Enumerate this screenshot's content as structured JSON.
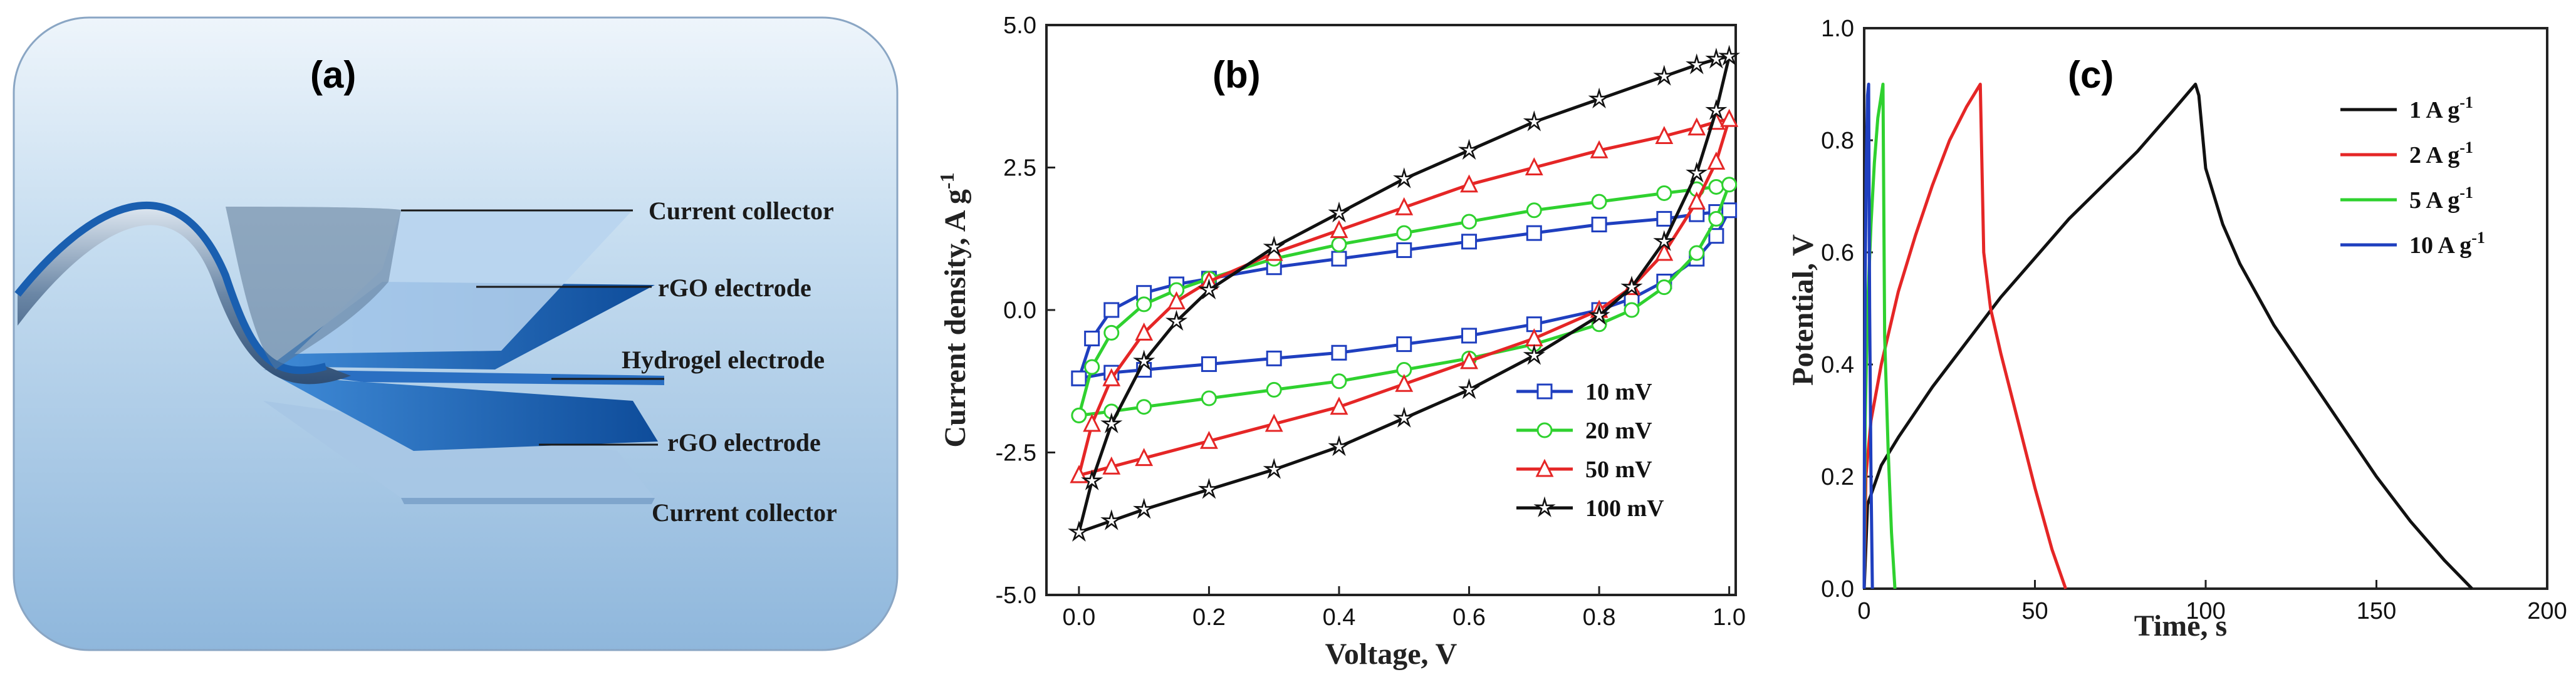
{
  "figure": {
    "panel_a": {
      "label": "(a)",
      "layers": [
        {
          "label": "Current collector",
          "color": "#9cc4e4"
        },
        {
          "label": "rGO electrode",
          "color": "#1f5fa8"
        },
        {
          "label": "Hydrogel electrode",
          "color": "#2f7fd0"
        },
        {
          "label": "rGO electrode",
          "color": "#1f5fa8"
        },
        {
          "label": "Current collector",
          "color": "#9cc4e4"
        }
      ]
    }
  },
  "chart_data": [
    {
      "panel_label": "(b)",
      "type": "line",
      "title": "",
      "xlabel": "Voltage, V",
      "ylabel": "Current density, A g",
      "ylabel_sup": "-1",
      "xlim": [
        -0.05,
        1.01
      ],
      "ylim": [
        -5.0,
        5.0
      ],
      "xticks": [
        0.0,
        0.2,
        0.4,
        0.6,
        0.8,
        1.0
      ],
      "xtick_labels": [
        "0.0",
        "0.2",
        "0.4",
        "0.6",
        "0.8",
        "1.0"
      ],
      "yticks": [
        -5.0,
        -2.5,
        0.0,
        2.5,
        5.0
      ],
      "ytick_labels": [
        "-5.0",
        "-2.5",
        "0.0",
        "2.5",
        "5.0"
      ],
      "legend_position": "bottom-right",
      "series": [
        {
          "name": "10 mV",
          "color": "#1f3fbf",
          "marker": "square",
          "x": [
            0.0,
            0.02,
            0.05,
            0.1,
            0.15,
            0.2,
            0.3,
            0.4,
            0.5,
            0.6,
            0.7,
            0.8,
            0.9,
            0.95,
            0.98,
            1.0,
            0.98,
            0.95,
            0.9,
            0.85,
            0.8,
            0.7,
            0.6,
            0.5,
            0.4,
            0.3,
            0.2,
            0.1,
            0.05,
            0.0
          ],
          "y": [
            -1.2,
            -0.5,
            0.0,
            0.3,
            0.45,
            0.55,
            0.75,
            0.9,
            1.05,
            1.2,
            1.35,
            1.5,
            1.6,
            1.68,
            1.72,
            1.75,
            1.3,
            0.9,
            0.5,
            0.2,
            0.0,
            -0.25,
            -0.45,
            -0.6,
            -0.75,
            -0.85,
            -0.95,
            -1.05,
            -1.1,
            -1.2
          ]
        },
        {
          "name": "20 mV",
          "color": "#2fd12f",
          "marker": "circle",
          "x": [
            0.0,
            0.02,
            0.05,
            0.1,
            0.15,
            0.2,
            0.3,
            0.4,
            0.5,
            0.6,
            0.7,
            0.8,
            0.9,
            0.95,
            0.98,
            1.0,
            0.98,
            0.95,
            0.9,
            0.85,
            0.8,
            0.7,
            0.6,
            0.5,
            0.4,
            0.3,
            0.2,
            0.1,
            0.05,
            0.0
          ],
          "y": [
            -1.85,
            -1.0,
            -0.4,
            0.1,
            0.35,
            0.55,
            0.9,
            1.15,
            1.35,
            1.55,
            1.75,
            1.9,
            2.05,
            2.12,
            2.16,
            2.2,
            1.6,
            1.0,
            0.4,
            0.0,
            -0.25,
            -0.6,
            -0.85,
            -1.05,
            -1.25,
            -1.4,
            -1.55,
            -1.7,
            -1.78,
            -1.85
          ]
        },
        {
          "name": "50 mV",
          "color": "#e52626",
          "marker": "triangle",
          "x": [
            0.0,
            0.02,
            0.05,
            0.1,
            0.15,
            0.2,
            0.3,
            0.4,
            0.5,
            0.6,
            0.7,
            0.8,
            0.9,
            0.95,
            0.98,
            1.0,
            0.98,
            0.95,
            0.9,
            0.85,
            0.8,
            0.7,
            0.6,
            0.5,
            0.4,
            0.3,
            0.2,
            0.1,
            0.05,
            0.0
          ],
          "y": [
            -2.9,
            -2.0,
            -1.2,
            -0.4,
            0.15,
            0.5,
            1.0,
            1.4,
            1.8,
            2.2,
            2.5,
            2.8,
            3.05,
            3.2,
            3.3,
            3.35,
            2.6,
            1.9,
            1.0,
            0.4,
            0.0,
            -0.5,
            -0.9,
            -1.3,
            -1.7,
            -2.0,
            -2.3,
            -2.6,
            -2.75,
            -2.9
          ]
        },
        {
          "name": "100 mV",
          "color": "#111111",
          "marker": "star",
          "x": [
            0.0,
            0.02,
            0.05,
            0.1,
            0.15,
            0.2,
            0.3,
            0.4,
            0.5,
            0.6,
            0.7,
            0.8,
            0.9,
            0.95,
            0.98,
            1.0,
            0.98,
            0.95,
            0.9,
            0.85,
            0.8,
            0.7,
            0.6,
            0.5,
            0.4,
            0.3,
            0.2,
            0.1,
            0.05,
            0.0
          ],
          "y": [
            -3.9,
            -3.0,
            -2.0,
            -0.9,
            -0.2,
            0.35,
            1.1,
            1.7,
            2.3,
            2.8,
            3.3,
            3.7,
            4.1,
            4.3,
            4.4,
            4.45,
            3.5,
            2.4,
            1.2,
            0.4,
            -0.1,
            -0.8,
            -1.4,
            -1.9,
            -2.4,
            -2.8,
            -3.15,
            -3.5,
            -3.7,
            -3.9
          ]
        }
      ]
    },
    {
      "panel_label": "(c)",
      "type": "line",
      "title": "",
      "xlabel": "Time, s",
      "ylabel": "Potential, V",
      "xlim": [
        0,
        200
      ],
      "ylim": [
        0.0,
        1.0
      ],
      "xticks": [
        0,
        50,
        100,
        150,
        200
      ],
      "xtick_labels": [
        "0",
        "50",
        "100",
        "150",
        "200"
      ],
      "yticks": [
        0.0,
        0.2,
        0.4,
        0.6,
        0.8,
        1.0
      ],
      "ytick_labels": [
        "0.0",
        "0.2",
        "0.4",
        "0.6",
        "0.8",
        "1.0"
      ],
      "legend_position": "top-right",
      "series": [
        {
          "name": "1 A g",
          "sup": "-1",
          "color": "#111111",
          "x": [
            0,
            1,
            5,
            10,
            20,
            30,
            40,
            50,
            60,
            70,
            80,
            90,
            97,
            98,
            100,
            105,
            110,
            120,
            130,
            140,
            150,
            160,
            170,
            178
          ],
          "y": [
            0.0,
            0.15,
            0.22,
            0.27,
            0.36,
            0.44,
            0.52,
            0.59,
            0.66,
            0.72,
            0.78,
            0.85,
            0.9,
            0.88,
            0.75,
            0.65,
            0.58,
            0.47,
            0.38,
            0.29,
            0.2,
            0.12,
            0.05,
            0.0
          ]
        },
        {
          "name": "2 A g",
          "sup": "-1",
          "color": "#e52626",
          "x": [
            0,
            0.5,
            2,
            5,
            10,
            15,
            20,
            25,
            30,
            34,
            35,
            37,
            40,
            45,
            50,
            55,
            59
          ],
          "y": [
            0.0,
            0.2,
            0.3,
            0.4,
            0.53,
            0.63,
            0.72,
            0.8,
            0.86,
            0.9,
            0.6,
            0.5,
            0.42,
            0.3,
            0.18,
            0.07,
            0.0
          ]
        },
        {
          "name": "5 A g",
          "sup": "-1",
          "color": "#2fd12f",
          "x": [
            0,
            0.3,
            1,
            2,
            3,
            4,
            5,
            5.5,
            6,
            7,
            8,
            9
          ],
          "y": [
            0.0,
            0.3,
            0.5,
            0.65,
            0.76,
            0.84,
            0.88,
            0.9,
            0.45,
            0.25,
            0.1,
            0.0
          ]
        },
        {
          "name": "10 A g",
          "sup": "-1",
          "color": "#1f3fbf",
          "x": [
            0,
            0.1,
            0.3,
            0.6,
            1.0,
            1.3,
            1.6,
            2.0,
            2.4
          ],
          "y": [
            0.0,
            0.3,
            0.55,
            0.75,
            0.88,
            0.9,
            0.5,
            0.2,
            0.0
          ]
        }
      ]
    }
  ]
}
